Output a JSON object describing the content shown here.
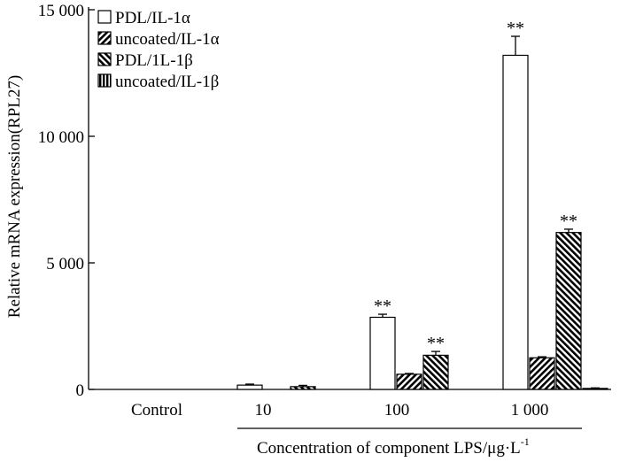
{
  "chart_data": {
    "type": "bar",
    "ylabel": "Relative mRNA expression(RPL27)",
    "xlabel": "Concentration of component LPS/μg·L",
    "xlabel_superscript": "-1",
    "ylim": [
      0,
      15000
    ],
    "yticks": [
      {
        "value": 0,
        "label": "0"
      },
      {
        "value": 5000,
        "label": "5 000"
      },
      {
        "value": 10000,
        "label": "10 000"
      },
      {
        "value": 15000,
        "label": "15 000"
      }
    ],
    "categories": [
      "Control",
      "10",
      "100",
      "1 000"
    ],
    "series": [
      {
        "name": "PDL/IL-1α",
        "pattern": "open",
        "values": [
          0,
          170,
          2850,
          13200
        ],
        "errors": [
          0,
          40,
          120,
          750
        ],
        "sig": [
          "",
          "",
          "**",
          "**"
        ]
      },
      {
        "name": "uncoated/IL-1α",
        "pattern": "hatch-back",
        "values": [
          0,
          0,
          600,
          1250
        ],
        "errors": [
          0,
          0,
          30,
          40
        ],
        "sig": [
          "",
          "",
          "",
          ""
        ]
      },
      {
        "name": "PDL/1L-1β",
        "pattern": "hatch-forward",
        "values": [
          0,
          110,
          1350,
          6200
        ],
        "errors": [
          0,
          50,
          150,
          130
        ],
        "sig": [
          "",
          "",
          "**",
          "**"
        ]
      },
      {
        "name": "uncoated/IL-1β",
        "pattern": "vertical",
        "values": [
          0,
          0,
          0,
          40
        ],
        "errors": [
          0,
          0,
          0,
          20
        ],
        "sig": [
          "",
          "",
          "",
          ""
        ]
      }
    ],
    "legend_position": "top-left",
    "grid": false
  }
}
